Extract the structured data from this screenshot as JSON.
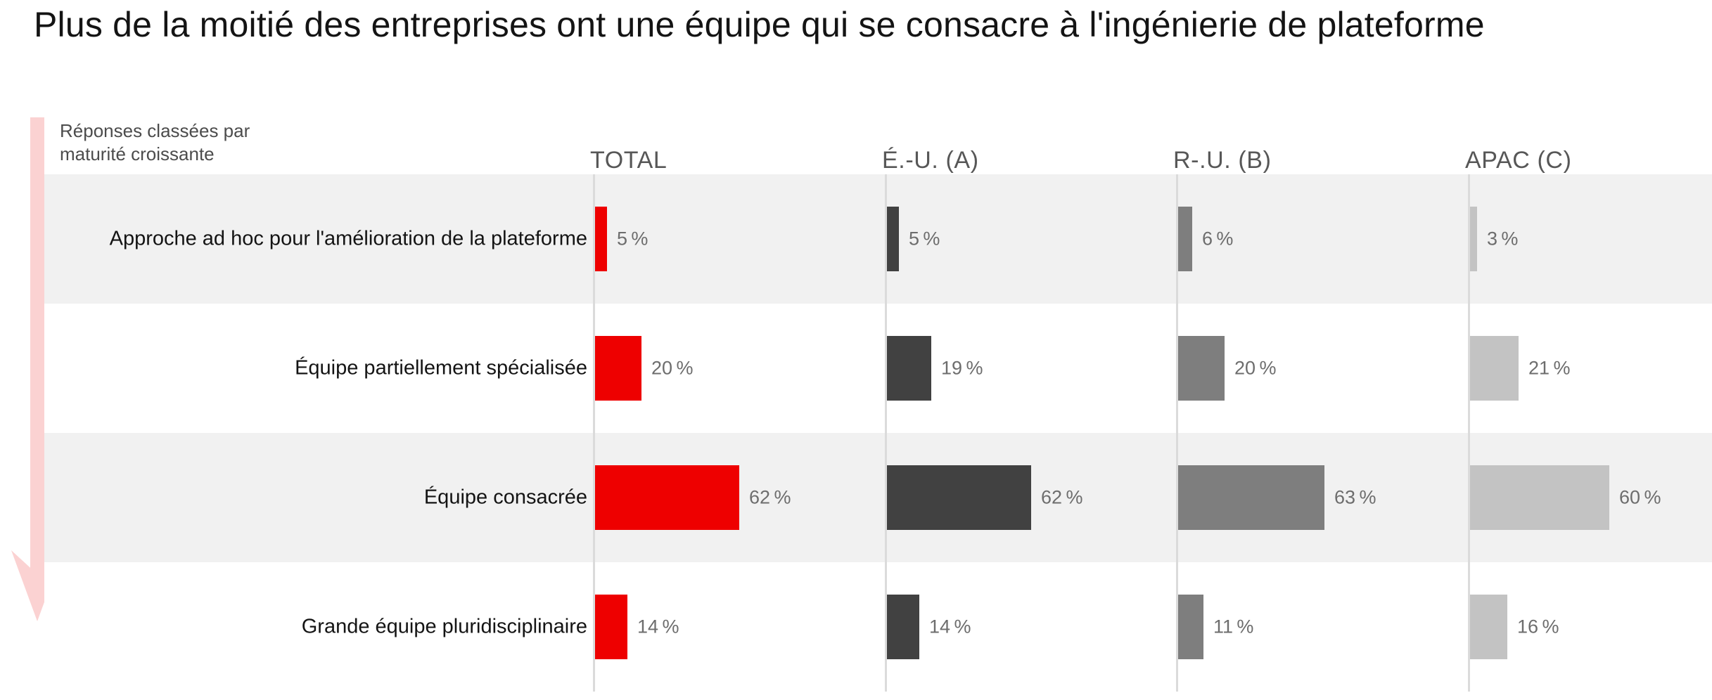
{
  "title": "Plus de la moitié des entreprises ont une équipe qui se consacre à l'ingénierie de plateforme",
  "annotation": {
    "line1": "Réponses classées par",
    "line2": "maturité croissante"
  },
  "colors": {
    "accent_red": "#ee0000",
    "dark_gray": "#414141",
    "mid_gray": "#7e7e7e",
    "light_gray": "#c3c3c3",
    "row_band": "#f1f1f1",
    "axis_line": "#dbdbdb",
    "arrow_pink": "#fbd2d2"
  },
  "chart_data": {
    "type": "bar",
    "orientation": "horizontal",
    "unit": "%",
    "xlim": [
      0,
      100
    ],
    "grid": false,
    "legend_position": "column-headers-top",
    "note": "Réponses classées par maturité croissante",
    "categories": [
      "Approche ad hoc pour l'amélioration de la plateforme",
      "Équipe partiellement spécialisée",
      "Équipe consacrée",
      "Grande équipe pluridisciplinaire"
    ],
    "series": [
      {
        "name": "TOTAL",
        "color": "#ee0000",
        "values": [
          5,
          20,
          62,
          14
        ],
        "value_labels": [
          "5 %",
          "20 %",
          "62 %",
          "14 %"
        ]
      },
      {
        "name": "É.-U. (A)",
        "color": "#414141",
        "values": [
          5,
          19,
          62,
          14
        ],
        "value_labels": [
          "5 %",
          "19 %",
          "62 %",
          "14 %"
        ]
      },
      {
        "name": "R-.U. (B)",
        "color": "#7e7e7e",
        "values": [
          6,
          20,
          63,
          11
        ],
        "value_labels": [
          "6 %",
          "20 %",
          "63 %",
          "11 %"
        ]
      },
      {
        "name": "APAC (C)",
        "color": "#c3c3c3",
        "values": [
          3,
          21,
          60,
          16
        ],
        "value_labels": [
          "3 %",
          "21 %",
          "60 %",
          "16 %"
        ]
      }
    ]
  }
}
